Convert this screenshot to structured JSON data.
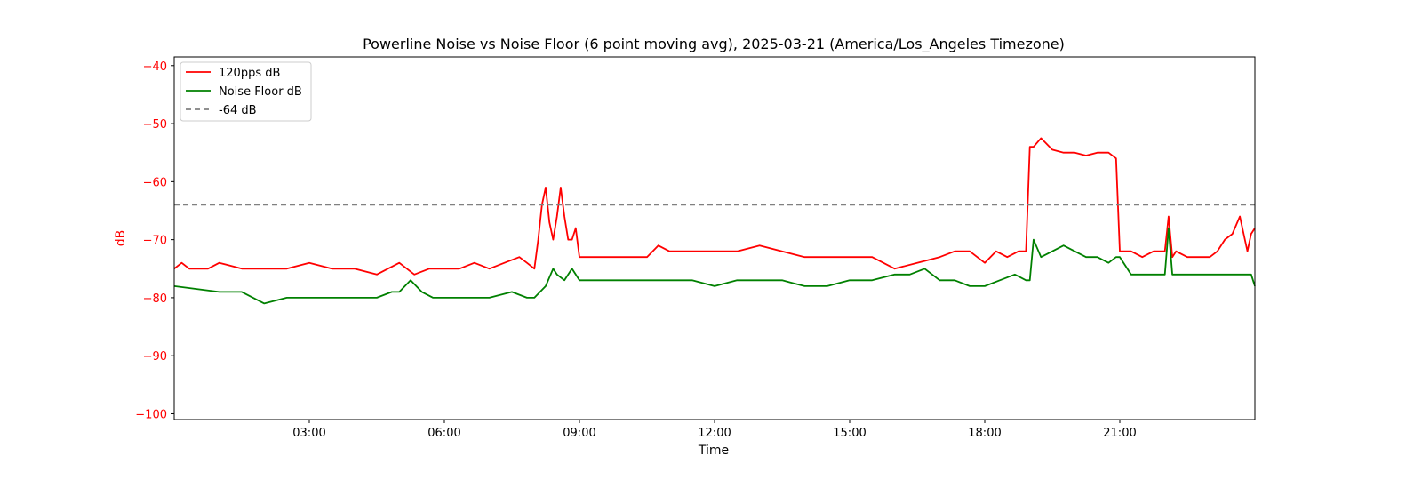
{
  "chart_data": {
    "type": "line",
    "title": "Powerline Noise vs Noise Floor (6 point moving avg), 2025-03-21 (America/Los_Angeles Timezone)",
    "xlabel": "Time",
    "ylabel": "dB",
    "x_range": [
      "00:00",
      "24:00"
    ],
    "ylim": [
      -101,
      -38.5
    ],
    "x_ticks": [
      "03:00",
      "06:00",
      "09:00",
      "12:00",
      "15:00",
      "18:00",
      "21:00"
    ],
    "y_ticks": [
      -40,
      -50,
      -60,
      -70,
      -80,
      -90,
      -100
    ],
    "grid": false,
    "legend_position": "top-left",
    "colors": {
      "series_120pps": "#ff0000",
      "series_noise_floor": "#008000",
      "threshold": "#808080",
      "ylabel": "#ff0000"
    },
    "series": [
      {
        "name": "120pps dB",
        "x": [
          "00:00",
          "00:10",
          "00:20",
          "00:30",
          "00:45",
          "01:00",
          "01:30",
          "02:00",
          "02:30",
          "03:00",
          "03:30",
          "04:00",
          "04:30",
          "05:00",
          "05:20",
          "05:40",
          "06:00",
          "06:20",
          "06:40",
          "07:00",
          "07:20",
          "07:40",
          "07:50",
          "08:00",
          "08:05",
          "08:10",
          "08:15",
          "08:20",
          "08:25",
          "08:30",
          "08:35",
          "08:40",
          "08:45",
          "08:50",
          "08:55",
          "09:00",
          "09:30",
          "10:00",
          "10:30",
          "10:45",
          "11:00",
          "11:30",
          "12:00",
          "12:30",
          "13:00",
          "13:30",
          "14:00",
          "14:30",
          "15:00",
          "15:30",
          "16:00",
          "16:30",
          "17:00",
          "17:20",
          "17:40",
          "18:00",
          "18:15",
          "18:30",
          "18:45",
          "18:55",
          "19:00",
          "19:05",
          "19:15",
          "19:30",
          "19:45",
          "20:00",
          "20:15",
          "20:30",
          "20:45",
          "20:55",
          "21:00",
          "21:15",
          "21:30",
          "21:45",
          "22:00",
          "22:05",
          "22:10",
          "22:15",
          "22:30",
          "22:45",
          "23:00",
          "23:10",
          "23:20",
          "23:30",
          "23:40",
          "23:50",
          "23:55",
          "24:00"
        ],
        "values": [
          -75,
          -74,
          -75,
          -75,
          -75,
          -74,
          -75,
          -75,
          -75,
          -74,
          -75,
          -75,
          -76,
          -74,
          -76,
          -75,
          -75,
          -75,
          -74,
          -75,
          -74,
          -73,
          -74,
          -75,
          -70,
          -64,
          -61,
          -67,
          -70,
          -66,
          -61,
          -66,
          -70,
          -70,
          -68,
          -73,
          -73,
          -73,
          -73,
          -71,
          -72,
          -72,
          -72,
          -72,
          -71,
          -72,
          -73,
          -73,
          -73,
          -73,
          -75,
          -74,
          -73,
          -72,
          -72,
          -74,
          -72,
          -73,
          -72,
          -72,
          -54,
          -54,
          -52.5,
          -54.5,
          -55,
          -55,
          -55.5,
          -55,
          -55,
          -56,
          -72,
          -72,
          -73,
          -72,
          -72,
          -66,
          -73,
          -72,
          -73,
          -73,
          -73,
          -72,
          -70,
          -69,
          -66,
          -72,
          -69,
          -68
        ]
      },
      {
        "name": "Noise Floor dB",
        "x": [
          "00:00",
          "00:30",
          "01:00",
          "01:30",
          "02:00",
          "02:30",
          "03:00",
          "03:30",
          "04:00",
          "04:30",
          "04:50",
          "05:00",
          "05:15",
          "05:30",
          "05:45",
          "06:00",
          "06:30",
          "07:00",
          "07:30",
          "07:50",
          "08:00",
          "08:15",
          "08:25",
          "08:30",
          "08:40",
          "08:50",
          "09:00",
          "09:30",
          "10:00",
          "10:30",
          "11:00",
          "11:30",
          "12:00",
          "12:30",
          "13:00",
          "13:30",
          "14:00",
          "14:30",
          "15:00",
          "15:30",
          "16:00",
          "16:20",
          "16:40",
          "17:00",
          "17:20",
          "17:40",
          "18:00",
          "18:20",
          "18:40",
          "18:55",
          "19:00",
          "19:05",
          "19:15",
          "19:30",
          "19:45",
          "20:00",
          "20:15",
          "20:30",
          "20:45",
          "20:55",
          "21:00",
          "21:15",
          "21:30",
          "21:45",
          "22:00",
          "22:05",
          "22:10",
          "22:20",
          "22:30",
          "22:45",
          "23:00",
          "23:15",
          "23:30",
          "23:45",
          "23:55",
          "24:00"
        ],
        "values": [
          -78,
          -78.5,
          -79,
          -79,
          -81,
          -80,
          -80,
          -80,
          -80,
          -80,
          -79,
          -79,
          -77,
          -79,
          -80,
          -80,
          -80,
          -80,
          -79,
          -80,
          -80,
          -78,
          -75,
          -76,
          -77,
          -75,
          -77,
          -77,
          -77,
          -77,
          -77,
          -77,
          -78,
          -77,
          -77,
          -77,
          -78,
          -78,
          -77,
          -77,
          -76,
          -76,
          -75,
          -77,
          -77,
          -78,
          -78,
          -77,
          -76,
          -77,
          -77,
          -70,
          -73,
          -72,
          -71,
          -72,
          -73,
          -73,
          -74,
          -73,
          -73,
          -76,
          -76,
          -76,
          -76,
          -68,
          -76,
          -76,
          -76,
          -76,
          -76,
          -76,
          -76,
          -76,
          -76,
          -78
        ]
      }
    ],
    "threshold": {
      "name": "-64 dB",
      "value": -64
    }
  }
}
